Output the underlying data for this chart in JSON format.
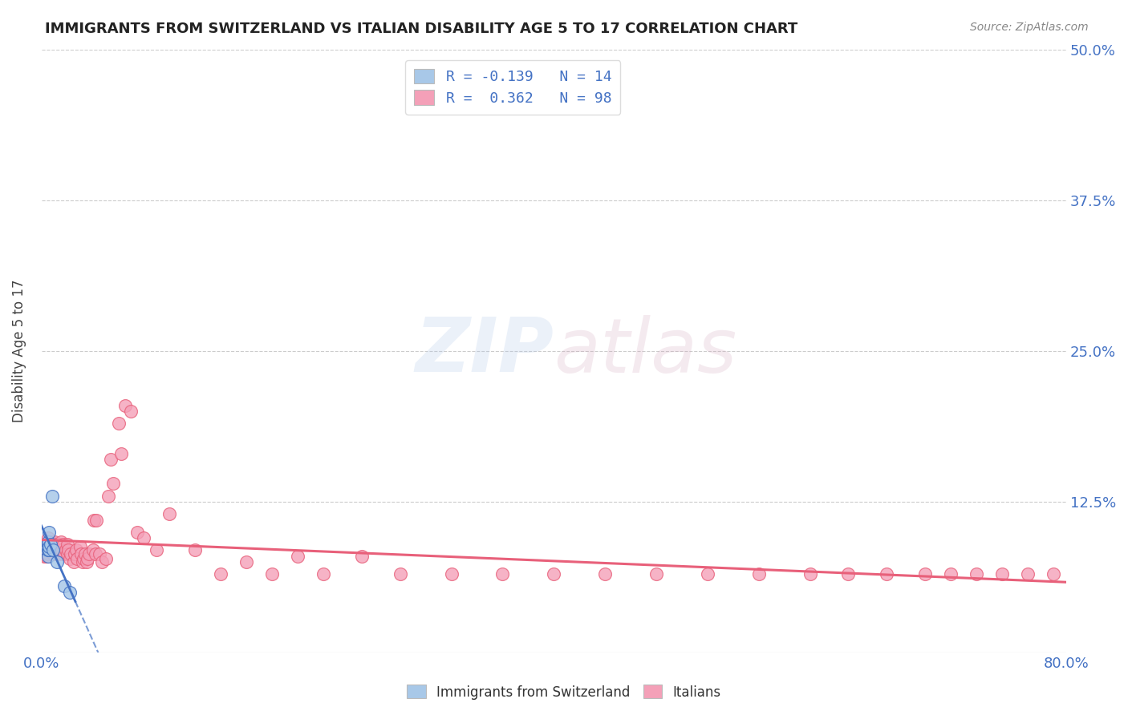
{
  "title": "IMMIGRANTS FROM SWITZERLAND VS ITALIAN DISABILITY AGE 5 TO 17 CORRELATION CHART",
  "source": "Source: ZipAtlas.com",
  "ylabel": "Disability Age 5 to 17",
  "xlim": [
    0.0,
    0.8
  ],
  "ylim": [
    0.0,
    0.5
  ],
  "yticks": [
    0.0,
    0.125,
    0.25,
    0.375,
    0.5
  ],
  "yticklabels": [
    "",
    "12.5%",
    "25.0%",
    "37.5%",
    "50.0%"
  ],
  "r_swiss": -0.139,
  "n_swiss": 14,
  "r_italian": 0.362,
  "n_italian": 98,
  "color_swiss": "#a8c8e8",
  "color_italian": "#f4a0b8",
  "line_color_swiss": "#4472c4",
  "line_color_italian": "#e8607a",
  "background_color": "#ffffff",
  "grid_color": "#cccccc",
  "watermark_zip": "ZIP",
  "watermark_atlas": "atlas",
  "legend_label_swiss": "Immigrants from Switzerland",
  "legend_label_italian": "Italians",
  "swiss_x": [
    0.004,
    0.005,
    0.005,
    0.005,
    0.005,
    0.006,
    0.006,
    0.006,
    0.007,
    0.008,
    0.009,
    0.012,
    0.018,
    0.022
  ],
  "swiss_y": [
    0.085,
    0.08,
    0.085,
    0.09,
    0.092,
    0.085,
    0.1,
    0.088,
    0.09,
    0.13,
    0.085,
    0.075,
    0.055,
    0.05
  ],
  "italian_x": [
    0.002,
    0.003,
    0.003,
    0.004,
    0.004,
    0.004,
    0.005,
    0.005,
    0.005,
    0.005,
    0.006,
    0.006,
    0.006,
    0.007,
    0.007,
    0.007,
    0.007,
    0.008,
    0.008,
    0.008,
    0.009,
    0.009,
    0.009,
    0.01,
    0.01,
    0.01,
    0.011,
    0.011,
    0.012,
    0.012,
    0.013,
    0.013,
    0.014,
    0.015,
    0.015,
    0.016,
    0.017,
    0.018,
    0.019,
    0.02,
    0.02,
    0.021,
    0.022,
    0.023,
    0.025,
    0.026,
    0.027,
    0.028,
    0.03,
    0.031,
    0.032,
    0.033,
    0.034,
    0.035,
    0.036,
    0.037,
    0.04,
    0.041,
    0.042,
    0.043,
    0.045,
    0.047,
    0.05,
    0.052,
    0.054,
    0.056,
    0.06,
    0.062,
    0.065,
    0.07,
    0.075,
    0.08,
    0.09,
    0.1,
    0.12,
    0.14,
    0.16,
    0.18,
    0.2,
    0.22,
    0.25,
    0.28,
    0.32,
    0.36,
    0.4,
    0.44,
    0.48,
    0.52,
    0.56,
    0.6,
    0.63,
    0.66,
    0.69,
    0.71,
    0.73,
    0.75,
    0.77,
    0.79
  ],
  "italian_y": [
    0.08,
    0.09,
    0.085,
    0.09,
    0.08,
    0.085,
    0.09,
    0.085,
    0.082,
    0.095,
    0.09,
    0.085,
    0.088,
    0.09,
    0.092,
    0.085,
    0.088,
    0.09,
    0.085,
    0.088,
    0.09,
    0.085,
    0.082,
    0.09,
    0.085,
    0.092,
    0.088,
    0.085,
    0.09,
    0.082,
    0.088,
    0.085,
    0.09,
    0.092,
    0.082,
    0.085,
    0.09,
    0.082,
    0.085,
    0.09,
    0.082,
    0.085,
    0.078,
    0.082,
    0.075,
    0.082,
    0.085,
    0.078,
    0.088,
    0.082,
    0.075,
    0.078,
    0.082,
    0.075,
    0.078,
    0.082,
    0.085,
    0.11,
    0.082,
    0.11,
    0.082,
    0.075,
    0.078,
    0.13,
    0.16,
    0.14,
    0.19,
    0.165,
    0.205,
    0.2,
    0.1,
    0.095,
    0.085,
    0.115,
    0.085,
    0.065,
    0.075,
    0.065,
    0.08,
    0.065,
    0.08,
    0.065,
    0.065,
    0.065,
    0.065,
    0.065,
    0.065,
    0.065,
    0.065,
    0.065,
    0.065,
    0.065,
    0.065,
    0.065,
    0.065,
    0.065,
    0.065,
    0.065
  ]
}
